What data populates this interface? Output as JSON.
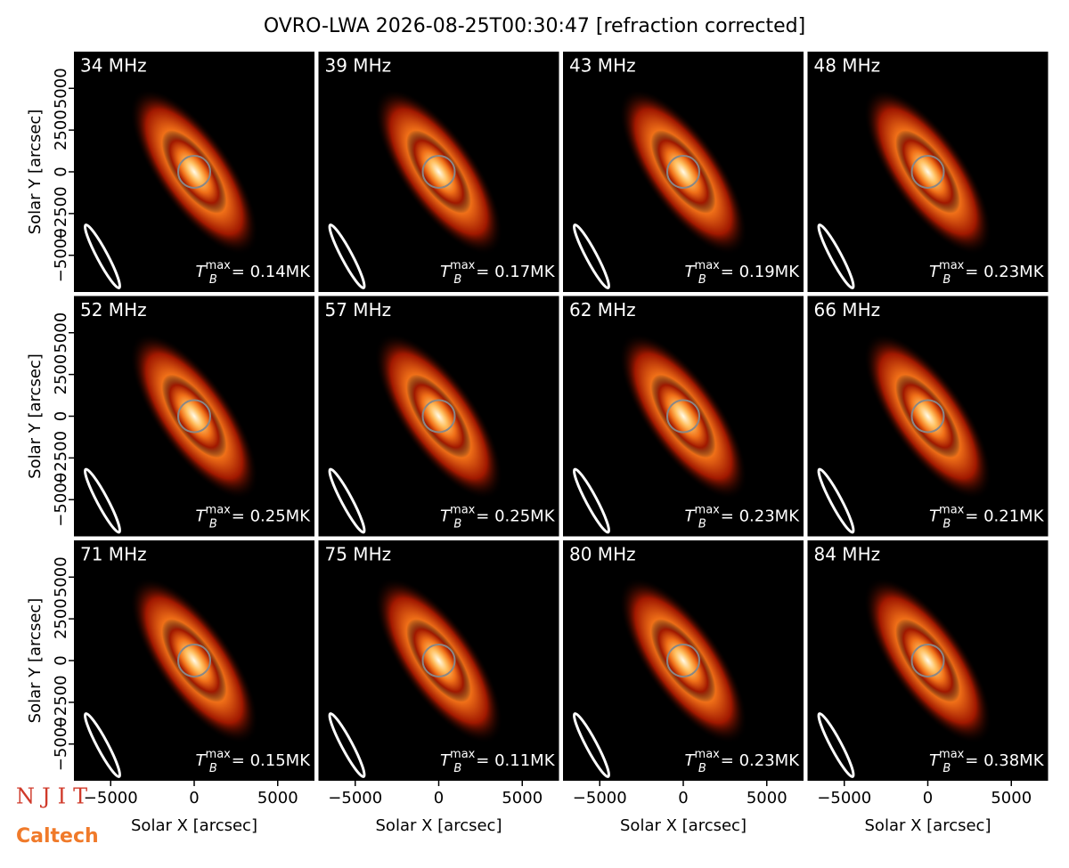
{
  "title": "OVRO-LWA 2026-08-25T00:30:47 [refraction corrected]",
  "logos": [
    "NJIT",
    "Caltech"
  ],
  "chart_data": [
    {
      "type": "image",
      "title": "34 MHz",
      "annotation": {
        "symbol": "T",
        "subscript": "B",
        "superscript": "max",
        "text": "= 0.14MK"
      },
      "xlim": [
        -7200,
        7200
      ],
      "ylim": [
        -7200,
        7200
      ],
      "ylabel": "Solar Y [arcsec]",
      "yticks": [
        {
          "value": -5000,
          "label": "−5000"
        },
        {
          "value": -2500,
          "label": "−2500"
        },
        0,
        2500,
        5000
      ]
    },
    {
      "type": "image",
      "title": "39 MHz",
      "annotation": {
        "symbol": "T",
        "subscript": "B",
        "superscript": "max",
        "text": "= 0.17MK"
      },
      "xlim": [
        -7200,
        7200
      ],
      "ylim": [
        -7200,
        7200
      ]
    },
    {
      "type": "image",
      "title": "43 MHz",
      "annotation": {
        "symbol": "T",
        "subscript": "B",
        "superscript": "max",
        "text": "= 0.19MK"
      },
      "xlim": [
        -7200,
        7200
      ],
      "ylim": [
        -7200,
        7200
      ]
    },
    {
      "type": "image",
      "title": "48 MHz",
      "annotation": {
        "symbol": "T",
        "subscript": "B",
        "superscript": "max",
        "text": "= 0.23MK"
      },
      "xlim": [
        -7200,
        7200
      ],
      "ylim": [
        -7200,
        7200
      ]
    },
    {
      "type": "image",
      "title": "52 MHz",
      "annotation": {
        "symbol": "T",
        "subscript": "B",
        "superscript": "max",
        "text": "= 0.25MK"
      },
      "xlim": [
        -7200,
        7200
      ],
      "ylim": [
        -7200,
        7200
      ],
      "ylabel": "Solar Y [arcsec]",
      "yticks": [
        {
          "value": -5000,
          "label": "−5000"
        },
        {
          "value": -2500,
          "label": "−2500"
        },
        0,
        2500,
        5000
      ]
    },
    {
      "type": "image",
      "title": "57 MHz",
      "annotation": {
        "symbol": "T",
        "subscript": "B",
        "superscript": "max",
        "text": "= 0.25MK"
      },
      "xlim": [
        -7200,
        7200
      ],
      "ylim": [
        -7200,
        7200
      ]
    },
    {
      "type": "image",
      "title": "62 MHz",
      "annotation": {
        "symbol": "T",
        "subscript": "B",
        "superscript": "max",
        "text": "= 0.23MK"
      },
      "xlim": [
        -7200,
        7200
      ],
      "ylim": [
        -7200,
        7200
      ]
    },
    {
      "type": "image",
      "title": "66 MHz",
      "annotation": {
        "symbol": "T",
        "subscript": "B",
        "superscript": "max",
        "text": "= 0.21MK"
      },
      "xlim": [
        -7200,
        7200
      ],
      "ylim": [
        -7200,
        7200
      ]
    },
    {
      "type": "image",
      "title": "71 MHz",
      "annotation": {
        "symbol": "T",
        "subscript": "B",
        "superscript": "max",
        "text": "= 0.15MK"
      },
      "xlim": [
        -7200,
        7200
      ],
      "ylim": [
        -7200,
        7200
      ],
      "ylabel": "Solar Y [arcsec]",
      "yticks": [
        {
          "value": -5000,
          "label": "−5000"
        },
        {
          "value": -2500,
          "label": "−2500"
        },
        0,
        2500,
        5000
      ],
      "xlabel": "Solar X [arcsec]",
      "xticks": [
        {
          "value": -5000,
          "label": "−5000"
        },
        0,
        5000
      ]
    },
    {
      "type": "image",
      "title": "75 MHz",
      "annotation": {
        "symbol": "T",
        "subscript": "B",
        "superscript": "max",
        "text": "= 0.11MK"
      },
      "xlim": [
        -7200,
        7200
      ],
      "ylim": [
        -7200,
        7200
      ],
      "xlabel": "Solar X [arcsec]",
      "xticks": [
        {
          "value": -5000,
          "label": "−5000"
        },
        0,
        5000
      ]
    },
    {
      "type": "image",
      "title": "80 MHz",
      "annotation": {
        "symbol": "T",
        "subscript": "B",
        "superscript": "max",
        "text": "= 0.23MK"
      },
      "xlim": [
        -7200,
        7200
      ],
      "ylim": [
        -7200,
        7200
      ],
      "xlabel": "Solar X [arcsec]",
      "xticks": [
        {
          "value": -5000,
          "label": "−5000"
        },
        0,
        5000
      ]
    },
    {
      "type": "image",
      "title": "84 MHz",
      "annotation": {
        "symbol": "T",
        "subscript": "B",
        "superscript": "max",
        "text": "= 0.38MK"
      },
      "xlim": [
        -7200,
        7200
      ],
      "ylim": [
        -7200,
        7200
      ],
      "xlabel": "Solar X [arcsec]",
      "xticks": [
        {
          "value": -5000,
          "label": "−5000"
        },
        0,
        5000
      ]
    }
  ]
}
